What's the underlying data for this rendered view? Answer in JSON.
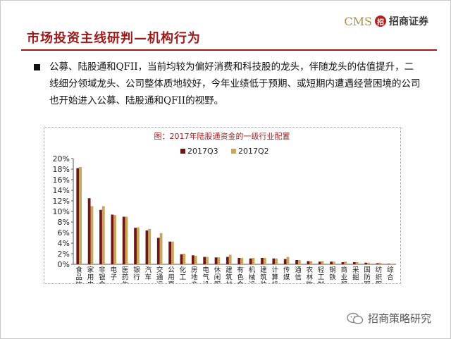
{
  "slide": {
    "title": "市场投资主线研判—机构行为",
    "logo_text": "CMS",
    "logo_mark": "招",
    "logo_name": "招商证券",
    "bullet_text": "公募、陆股通和QFII，当前均较为偏好消费和科技股的龙头，伴随龙头的估值提升，二线细分领域龙头、公司整体质地较好，今年业绩低于预期、或短期内遭遇经营困境的公司也开始进入公募、陆股通和QFII的视野。",
    "footer_name": "招商策略研究",
    "colors": {
      "title": "#9b1b1b",
      "series1": "#6e1616",
      "series2": "#c9a65a"
    }
  },
  "chart_data": {
    "type": "bar",
    "title": "图：2017年陆股通资金的一级行业配置",
    "yticks": [
      "0%",
      "2%",
      "4%",
      "6%",
      "8%",
      "10%",
      "12%",
      "14%",
      "16%",
      "18%",
      "20%"
    ],
    "ylim": [
      0,
      20
    ],
    "legend_position": "top",
    "grid": false,
    "categories": [
      "食品饮料",
      "家用电器",
      "非银金融",
      "电子",
      "医药生物",
      "银行",
      "汽车",
      "交通运输",
      "公用事业",
      "化工",
      "房地产",
      "电气设备",
      "休闲服务",
      "建筑材料",
      "有色金属",
      "机械设备",
      "建筑装饰",
      "计算机",
      "传媒",
      "通信",
      "农林牧渔",
      "轻工制造",
      "钢铁",
      "商业贸易",
      "采掘",
      "国防军工",
      "纺织服装",
      "综合"
    ],
    "series": [
      {
        "name": "2017Q3",
        "values": [
          18.2,
          12.5,
          10.3,
          9.4,
          9.0,
          6.9,
          6.4,
          5.0,
          4.3,
          1.9,
          1.7,
          1.4,
          1.3,
          1.4,
          1.2,
          1.1,
          1.2,
          1.1,
          1.0,
          0.8,
          0.6,
          0.5,
          0.5,
          0.4,
          0.4,
          0.3,
          0.2,
          0.1
        ]
      },
      {
        "name": "2017Q2",
        "values": [
          18.4,
          11.0,
          11.0,
          9.3,
          9.0,
          7.0,
          6.7,
          5.9,
          4.3,
          2.0,
          1.6,
          1.4,
          1.3,
          1.8,
          1.2,
          1.2,
          1.2,
          1.1,
          1.4,
          0.8,
          0.6,
          0.6,
          0.5,
          0.5,
          0.4,
          0.3,
          0.3,
          0.1
        ]
      }
    ]
  }
}
